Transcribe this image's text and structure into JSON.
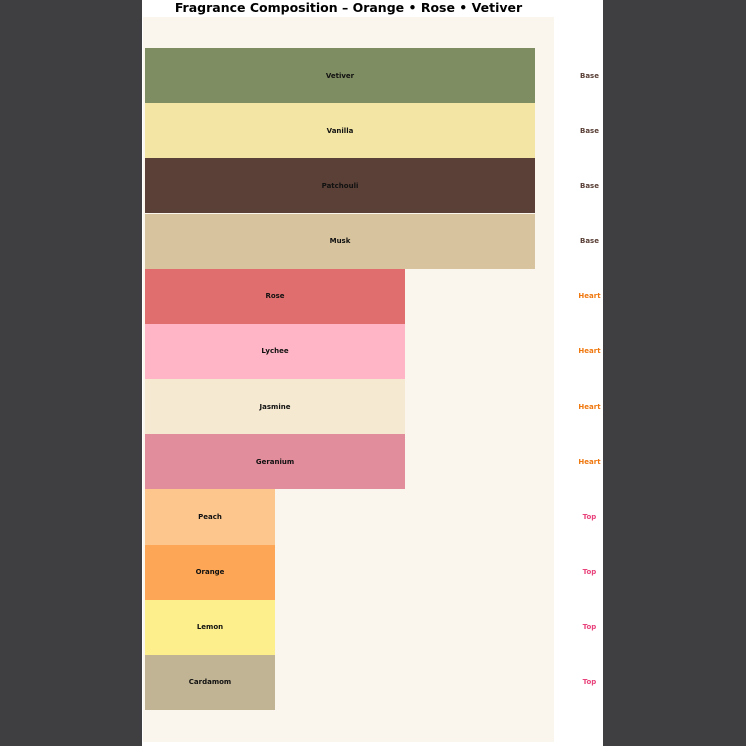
{
  "page": {
    "outer_background": "#3f3f41",
    "figure_background": "#ffffff",
    "plot_background": "#faf6ee"
  },
  "chart_data": {
    "type": "bar",
    "orientation": "horizontal",
    "title": "Fragrance Composition – Orange • Rose • Vetiver",
    "xlabel": "",
    "ylabel": "",
    "xlim": [
      0,
      3.16
    ],
    "grid": false,
    "axes_ticks_visible": false,
    "legend": "none",
    "bar_order_top_to_bottom": true,
    "rows": [
      {
        "label": "Vetiver",
        "group": "Base",
        "value": 3,
        "color": "#7f8d62"
      },
      {
        "label": "Vanilla",
        "group": "Base",
        "value": 3,
        "color": "#f3e6a4"
      },
      {
        "label": "Patchouli",
        "group": "Base",
        "value": 3,
        "color": "#5a4037"
      },
      {
        "label": "Musk",
        "group": "Base",
        "value": 3,
        "color": "#d7c49e"
      },
      {
        "label": "Rose",
        "group": "Heart",
        "value": 2,
        "color": "#e06e6e"
      },
      {
        "label": "Lychee",
        "group": "Heart",
        "value": 2,
        "color": "#ffb5c5"
      },
      {
        "label": "Jasmine",
        "group": "Heart",
        "value": 2,
        "color": "#f5e9d2"
      },
      {
        "label": "Geranium",
        "group": "Heart",
        "value": 2,
        "color": "#e18d9c"
      },
      {
        "label": "Peach",
        "group": "Top",
        "value": 1,
        "color": "#fdc68d"
      },
      {
        "label": "Orange",
        "group": "Top",
        "value": 1,
        "color": "#fda756"
      },
      {
        "label": "Lemon",
        "group": "Top",
        "value": 1,
        "color": "#fdf08c"
      },
      {
        "label": "Cardamom",
        "group": "Top",
        "value": 1,
        "color": "#c1b494"
      }
    ],
    "group_label_colors": {
      "Base": "#5a4037",
      "Heart": "#f07810",
      "Top": "#e8437c"
    }
  }
}
